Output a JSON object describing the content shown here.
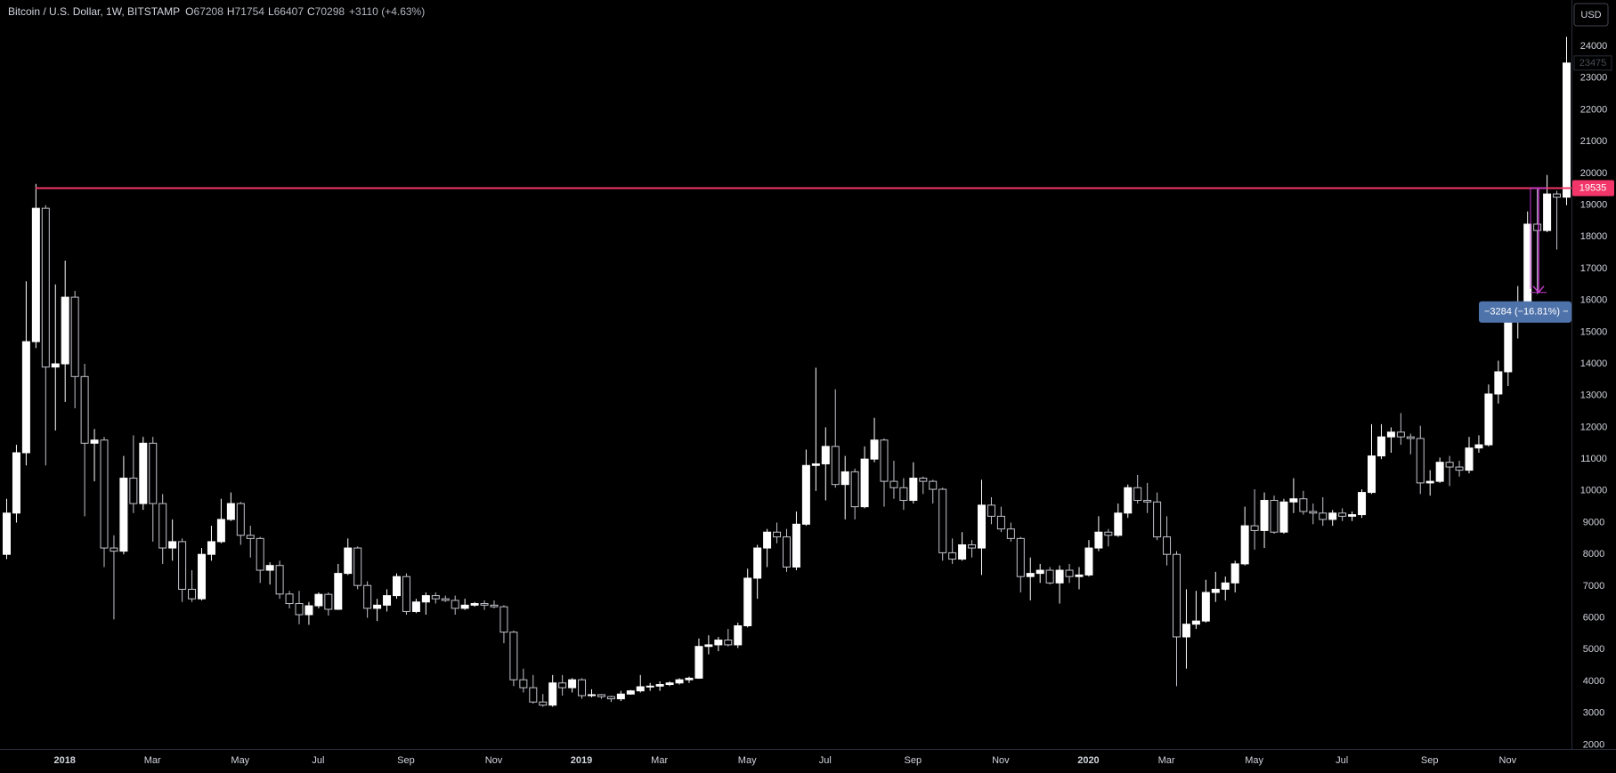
{
  "chart_data": {
    "type": "candlestick",
    "title": "Bitcoin / U.S. Dollar, 1W, BITSTAMP",
    "ohlc_legend": [
      {
        "label": "O",
        "value": 67208
      },
      {
        "label": "H",
        "value": 71754
      },
      {
        "label": "L",
        "value": 66407
      },
      {
        "label": "C",
        "value": 70298
      }
    ],
    "change_label": "+3110 (+4.63%)",
    "currency_button": "USD",
    "background": "#000000",
    "up_color": "#ffffff",
    "down_color": "#000000",
    "down_border_color": "#c2c4cc",
    "grid": false,
    "categories": [
      null,
      null,
      null,
      null,
      null,
      null,
      "2018",
      null,
      null,
      null,
      null,
      null,
      null,
      null,
      null,
      "Mar",
      null,
      null,
      null,
      null,
      null,
      null,
      null,
      null,
      "May",
      null,
      null,
      null,
      null,
      null,
      null,
      null,
      "Jul",
      null,
      null,
      null,
      null,
      null,
      null,
      null,
      null,
      "Sep",
      null,
      null,
      null,
      null,
      null,
      null,
      null,
      null,
      "Nov",
      null,
      null,
      null,
      null,
      null,
      null,
      null,
      null,
      "2019",
      null,
      null,
      null,
      null,
      null,
      null,
      null,
      "Mar",
      null,
      null,
      null,
      null,
      null,
      null,
      null,
      null,
      "May",
      null,
      null,
      null,
      null,
      null,
      null,
      null,
      "Jul",
      null,
      null,
      null,
      null,
      null,
      null,
      null,
      null,
      "Sep",
      null,
      null,
      null,
      null,
      null,
      null,
      null,
      null,
      "Nov",
      null,
      null,
      null,
      null,
      null,
      null,
      null,
      null,
      "2020",
      null,
      null,
      null,
      null,
      null,
      null,
      null,
      "Mar",
      null,
      null,
      null,
      null,
      null,
      null,
      null,
      null,
      "May",
      null,
      null,
      null,
      null,
      null,
      null,
      null,
      null,
      "Jul",
      null,
      null,
      null,
      null,
      null,
      null,
      null,
      null,
      "Sep",
      null,
      null,
      null,
      null,
      null,
      null,
      null,
      "Nov",
      null,
      null,
      null,
      null,
      null,
      null
    ],
    "open": [
      8000,
      9300,
      11200,
      14700,
      18900,
      13900,
      14000,
      16100,
      13600,
      11500,
      11600,
      8200,
      8100,
      10400,
      9600,
      11500,
      9600,
      8200,
      8400,
      6900,
      6600,
      8000,
      8400,
      9100,
      9600,
      8600,
      8500,
      7500,
      7650,
      6750,
      6450,
      6100,
      6380,
      6740,
      6270,
      7400,
      8200,
      7020,
      6300,
      6400,
      6700,
      7300,
      6200,
      6500,
      6700,
      6600,
      6550,
      6300,
      6400,
      6450,
      6400,
      6350,
      5550,
      4050,
      3800,
      3350,
      3250,
      3950,
      3800,
      4050,
      3550,
      3580,
      3520,
      3450,
      3600,
      3700,
      3830,
      3850,
      3900,
      3950,
      4050,
      4100,
      5100,
      5150,
      5300,
      5150,
      5750,
      7250,
      8200,
      8700,
      8550,
      7600,
      8950,
      10800,
      10850,
      11400,
      10200,
      10600,
      9500,
      11000,
      11600,
      10300,
      10100,
      9700,
      10400,
      10300,
      10050,
      8050,
      7850,
      8300,
      8200,
      9550,
      9200,
      8800,
      8500,
      7300,
      7400,
      7500,
      7100,
      7500,
      7300,
      7350,
      8200,
      8700,
      8600,
      9300,
      10100,
      9700,
      9650,
      8550,
      8000,
      5400,
      5800,
      5900,
      6800,
      6900,
      7100,
      7700,
      8900,
      8750,
      9700,
      8700,
      9650,
      9750,
      9350,
      9300,
      9100,
      9300,
      9200,
      9250,
      9950,
      11100,
      11700,
      11850,
      11700,
      11650,
      10250,
      10300,
      10900,
      10750,
      10650,
      11350,
      11450,
      13050,
      13750,
      15500,
      15950,
      18400,
      18200,
      19350,
      19250
    ],
    "high": [
      9750,
      11450,
      16600,
      19666,
      19000,
      16500,
      17250,
      16300,
      14000,
      11950,
      11700,
      8600,
      11100,
      11750,
      11700,
      11700,
      9900,
      9100,
      8500,
      7500,
      8200,
      8900,
      9750,
      9950,
      9650,
      8900,
      8550,
      7750,
      7800,
      6850,
      6850,
      6500,
      6800,
      6800,
      7700,
      8500,
      8250,
      7150,
      6600,
      6900,
      7400,
      7400,
      6600,
      6800,
      6800,
      6700,
      6700,
      6600,
      6500,
      6550,
      6550,
      6400,
      5600,
      4400,
      4200,
      3600,
      4200,
      4200,
      4100,
      4100,
      3750,
      3600,
      3550,
      3700,
      3730,
      4200,
      3950,
      4000,
      4000,
      4100,
      4150,
      5350,
      5450,
      5400,
      5650,
      5850,
      7550,
      8300,
      8800,
      9000,
      8800,
      9350,
      11300,
      13880,
      12000,
      13200,
      11100,
      10700,
      11400,
      12300,
      11650,
      10950,
      10400,
      10900,
      10450,
      10350,
      10100,
      8500,
      8700,
      8450,
      10350,
      9800,
      9500,
      9000,
      8550,
      7900,
      7700,
      7600,
      7650,
      7700,
      7600,
      8450,
      9200,
      8800,
      9600,
      10200,
      10500,
      10250,
      9950,
      9200,
      8100,
      6900,
      6850,
      7200,
      7450,
      7300,
      7800,
      9500,
      10050,
      9950,
      9850,
      9750,
      10400,
      10000,
      9600,
      9800,
      9400,
      9450,
      9350,
      10050,
      12100,
      12100,
      12000,
      12450,
      11800,
      12050,
      10650,
      11050,
      11100,
      10950,
      11700,
      11750,
      13350,
      14100,
      15950,
      16450,
      18800,
      19500,
      19950,
      19450,
      24300
    ],
    "low": [
      7850,
      9000,
      10800,
      14500,
      10800,
      11900,
      12800,
      12600,
      9200,
      10300,
      7600,
      5950,
      8000,
      9300,
      9400,
      8400,
      7700,
      7800,
      6500,
      6500,
      6550,
      7800,
      8350,
      9050,
      8300,
      7900,
      7100,
      7050,
      6600,
      6300,
      5800,
      5780,
      6300,
      6070,
      6250,
      7350,
      6900,
      6000,
      5900,
      6200,
      6600,
      6100,
      6150,
      6100,
      6450,
      6500,
      6100,
      6250,
      6350,
      6250,
      6300,
      5200,
      3850,
      3650,
      3300,
      3200,
      3200,
      3550,
      3650,
      3450,
      3500,
      3450,
      3350,
      3380,
      3580,
      3650,
      3700,
      3700,
      3850,
      3900,
      3950,
      4080,
      4850,
      4950,
      5100,
      5050,
      5700,
      6600,
      7600,
      8350,
      7450,
      7500,
      8900,
      10000,
      9700,
      10100,
      9100,
      9100,
      9450,
      10900,
      9500,
      9750,
      9400,
      9600,
      9900,
      9600,
      7800,
      7700,
      7800,
      7900,
      7350,
      8950,
      8700,
      8400,
      6800,
      6550,
      7100,
      7050,
      6450,
      7100,
      6900,
      7300,
      8100,
      8250,
      8550,
      9150,
      9600,
      9300,
      8450,
      7650,
      3850,
      4400,
      5650,
      5850,
      6500,
      6550,
      6800,
      7650,
      8150,
      8200,
      8650,
      8650,
      9300,
      9250,
      8950,
      8900,
      8900,
      9050,
      9050,
      9150,
      9900,
      11000,
      11200,
      11450,
      11150,
      9900,
      9850,
      10250,
      10150,
      10450,
      10550,
      11200,
      11400,
      12750,
      13300,
      14800,
      15850,
      16200,
      18150,
      17600,
      19000
    ],
    "close": [
      9300,
      11200,
      14700,
      18900,
      13900,
      14000,
      16100,
      13600,
      11500,
      11600,
      8200,
      8100,
      10400,
      9600,
      11500,
      9600,
      8200,
      8400,
      6900,
      6600,
      8000,
      8400,
      9100,
      9600,
      8600,
      8500,
      7500,
      7650,
      6750,
      6450,
      6100,
      6380,
      6740,
      6270,
      7400,
      8200,
      7020,
      6300,
      6400,
      6700,
      7300,
      6200,
      6500,
      6700,
      6600,
      6550,
      6300,
      6400,
      6450,
      6400,
      6350,
      5550,
      4050,
      3800,
      3350,
      3250,
      3950,
      3800,
      4050,
      3550,
      3580,
      3520,
      3450,
      3600,
      3700,
      3830,
      3850,
      3900,
      3950,
      4050,
      4100,
      5100,
      5150,
      5300,
      5150,
      5750,
      7250,
      8200,
      8700,
      8550,
      7600,
      8950,
      10800,
      10850,
      11400,
      10200,
      10600,
      9500,
      11000,
      11600,
      10300,
      10100,
      9700,
      10400,
      10300,
      10050,
      8050,
      7850,
      8300,
      8200,
      9550,
      9200,
      8800,
      8500,
      7300,
      7400,
      7500,
      7100,
      7500,
      7300,
      7350,
      8200,
      8700,
      8600,
      9300,
      10100,
      9700,
      9650,
      8550,
      8000,
      5400,
      5800,
      5900,
      6800,
      6900,
      7100,
      7700,
      8900,
      8750,
      9700,
      8700,
      9650,
      9750,
      9350,
      9300,
      9100,
      9300,
      9200,
      9250,
      9950,
      11100,
      11700,
      11850,
      11700,
      11650,
      10250,
      10300,
      10900,
      10750,
      10650,
      11350,
      11450,
      13050,
      13750,
      15500,
      15950,
      18400,
      18200,
      19350,
      19250,
      23475
    ],
    "ylim": [
      1870,
      25460
    ],
    "yticks": [
      2000,
      3000,
      4000,
      5000,
      6000,
      7000,
      8000,
      9000,
      10000,
      11000,
      12000,
      13000,
      14000,
      15000,
      16000,
      17000,
      18000,
      19000,
      20000,
      21000,
      22000,
      23000,
      24000
    ],
    "level_line": {
      "value": 19535,
      "color": "#f23669"
    },
    "measure": {
      "start": 19535,
      "end": 16251,
      "label": "−3284 (−16.81%) −",
      "color": "#c63ad0",
      "box_color": "#4e72aa"
    }
  }
}
